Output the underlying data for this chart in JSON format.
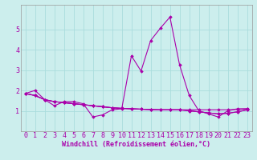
{
  "title": "",
  "xlabel": "Windchill (Refroidissement éolien,°C)",
  "ylabel": "",
  "background_color": "#cceeed",
  "grid_color": "#aadddd",
  "line_color": "#aa00aa",
  "xlim": [
    -0.5,
    23.5
  ],
  "ylim": [
    0,
    6.2
  ],
  "xticks": [
    0,
    1,
    2,
    3,
    4,
    5,
    6,
    7,
    8,
    9,
    10,
    11,
    12,
    13,
    14,
    15,
    16,
    17,
    18,
    19,
    20,
    21,
    22,
    23
  ],
  "yticks": [
    1,
    2,
    3,
    4,
    5
  ],
  "series": [
    [
      1.85,
      2.0,
      1.55,
      1.25,
      1.45,
      1.45,
      1.35,
      0.7,
      0.8,
      1.05,
      1.1,
      3.7,
      2.95,
      4.45,
      5.05,
      5.6,
      3.25,
      1.75,
      1.0,
      0.85,
      0.7,
      1.0,
      1.1,
      1.1
    ],
    [
      1.85,
      1.75,
      1.55,
      1.45,
      1.4,
      1.35,
      1.3,
      1.25,
      1.2,
      1.15,
      1.12,
      1.1,
      1.08,
      1.06,
      1.05,
      1.05,
      1.05,
      1.05,
      1.05,
      1.05,
      1.05,
      1.05,
      1.07,
      1.1
    ],
    [
      1.85,
      1.75,
      1.55,
      1.45,
      1.4,
      1.35,
      1.3,
      1.25,
      1.2,
      1.15,
      1.12,
      1.1,
      1.08,
      1.06,
      1.05,
      1.05,
      1.05,
      1.0,
      0.95,
      0.9,
      0.85,
      0.88,
      0.95,
      1.05
    ],
    [
      1.85,
      1.75,
      1.55,
      1.45,
      1.4,
      1.35,
      1.3,
      1.25,
      1.2,
      1.15,
      1.12,
      1.1,
      1.08,
      1.06,
      1.05,
      1.05,
      1.05,
      1.0,
      0.95,
      0.9,
      0.85,
      0.88,
      0.95,
      1.05
    ]
  ],
  "font_size_xlabel": 6,
  "font_size_ticks": 6,
  "marker": "D",
  "marker_size": 1.8,
  "line_width": 0.8
}
